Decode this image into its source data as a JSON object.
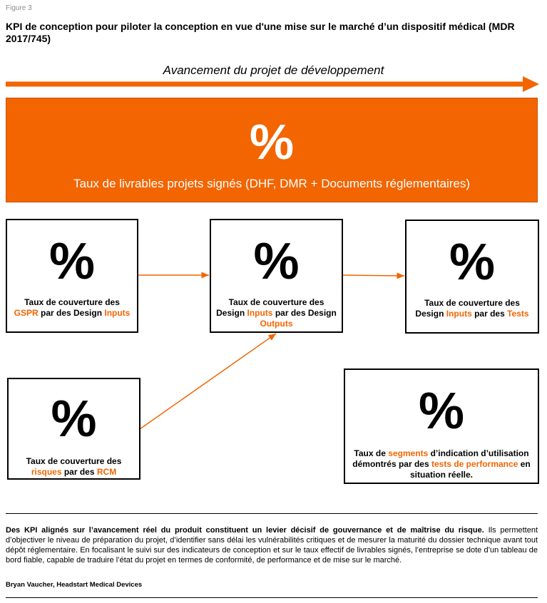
{
  "figure_label": "Figure 3",
  "title": "KPI de conception pour piloter la conception en vue d'une mise sur le marché d’un dispositif médical (MDR 2017/745)",
  "progress_axis": "Avancement du projet de développement",
  "colors": {
    "accent": "#F26500",
    "text": "#000000"
  },
  "banner": {
    "symbol": "%",
    "label": "Taux de livrables projets signés (DHF, DMR + Documents réglementaires)"
  },
  "boxes": [
    {
      "symbol": "%",
      "label": [
        {
          "t": "Taux de couverture des "
        },
        {
          "t": "GSPR",
          "hl": true
        },
        {
          "t": " par des Design "
        },
        {
          "t": "Inputs",
          "hl": true
        }
      ]
    },
    {
      "symbol": "%",
      "label": [
        {
          "t": "Taux de couverture des Design "
        },
        {
          "t": "Inputs",
          "hl": true
        },
        {
          "t": " par des Design "
        },
        {
          "t": "Outputs",
          "hl": true
        }
      ]
    },
    {
      "symbol": "%",
      "label": [
        {
          "t": "Taux de couverture des Design "
        },
        {
          "t": "Inputs",
          "hl": true
        },
        {
          "t": " par des "
        },
        {
          "t": "Tests",
          "hl": true
        }
      ]
    },
    {
      "symbol": "%",
      "label": [
        {
          "t": "Taux de couverture des "
        },
        {
          "t": "risques",
          "hl": true
        },
        {
          "t": " par des "
        },
        {
          "t": "RCM",
          "hl": true
        }
      ]
    },
    {
      "symbol": "%",
      "label": [
        {
          "t": "Taux de "
        },
        {
          "t": "segments",
          "hl": true
        },
        {
          "t": " d’indication d’utilisation démontrés par des "
        },
        {
          "t": "tests de performance",
          "hl": true
        },
        {
          "t": " en situation réelle."
        }
      ]
    }
  ],
  "footer": {
    "lead": "Des KPI alignés sur l’avancement réel du produit constituent un levier décisif de gouvernance et de maîtrise du risque.",
    "body": " Ils permettent d’objectiver le niveau de préparation du projet, d’identifier sans délai les vulnérabilités critiques et de mesurer la maturité du dossier technique avant tout dépôt réglementaire. En focalisant le suivi sur des indicateurs de conception et sur le taux effectif de livrables signés, l’entreprise se dote d’un tableau de bord fiable, capable de traduire l’état du projet en termes de conformité, de performance et de mise sur le marché.",
    "author": "Bryan Vaucher, Headstart Medical Devices"
  }
}
